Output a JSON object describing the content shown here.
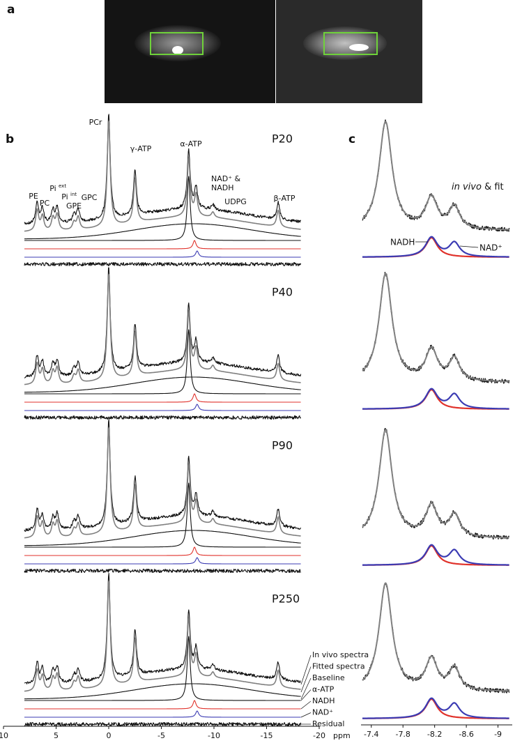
{
  "panel_labels": {
    "a": "a",
    "b": "b",
    "c": "c"
  },
  "spectra": {
    "type": "spectrum",
    "xlim": [
      10,
      -20
    ],
    "xticks": [
      10,
      5,
      0,
      -5,
      -10,
      -15,
      -20
    ],
    "x_unit": "ppm",
    "timepoints": [
      "P20",
      "P40",
      "P90",
      "P250"
    ],
    "peaks": [
      {
        "label": "PE",
        "ppm": 6.8,
        "height": 0.2
      },
      {
        "label": "PC",
        "ppm": 6.3,
        "height": 0.14
      },
      {
        "label": "Pi",
        "sup": "ext",
        "ppm": 5.3,
        "height": 0.12
      },
      {
        "label": "Pi",
        "sup": "int",
        "ppm": 4.9,
        "height": 0.15
      },
      {
        "label": "GPE",
        "ppm": 3.3,
        "height": 0.07
      },
      {
        "label": "GPC",
        "ppm": 2.9,
        "height": 0.12
      },
      {
        "label": "PCr",
        "ppm": 0,
        "height": 1
      },
      {
        "label": "γ-ATP",
        "ppm": -2.5,
        "height": 0.42
      },
      {
        "label": "α-ATP",
        "ppm": -7.6,
        "height": 0.55
      },
      {
        "label": [
          "NAD⁺ &",
          "NADH"
        ],
        "ppm": -8.3,
        "height": 0.2
      },
      {
        "label": "UDPG",
        "ppm": -9.9,
        "height": 0.05
      },
      {
        "label": "β-ATP",
        "ppm": -16.1,
        "height": 0.16
      }
    ],
    "series": [
      {
        "name": "In vivo spectra",
        "color": "#111111"
      },
      {
        "name": "Fitted spectra",
        "color": "#808080"
      },
      {
        "name": "Baseline",
        "color": "#111111"
      },
      {
        "name": "α-ATP",
        "color": "#111111"
      },
      {
        "name": "NADH",
        "color": "#e0322b"
      },
      {
        "name": "NAD⁺",
        "color": "#3b3bb3"
      },
      {
        "name": "Residual",
        "color": "#111111"
      }
    ]
  },
  "fit": {
    "type": "spectrum",
    "title_italic": "in vivo",
    "title_rest": " & fit",
    "xlim": [
      -7.27,
      -9.18
    ],
    "xticks": [
      -7.4,
      -7.8,
      -8.2,
      -8.6,
      -9
    ],
    "main_peak": {
      "ppm": -7.58,
      "height": 1
    },
    "components": [
      {
        "name": "NADH",
        "ppm": -8.16,
        "height": 0.18,
        "color": "#e0322b"
      },
      {
        "name": "NAD⁺",
        "ppm": -8.45,
        "height": 0.13,
        "color": "#3b3bb3"
      }
    ]
  }
}
